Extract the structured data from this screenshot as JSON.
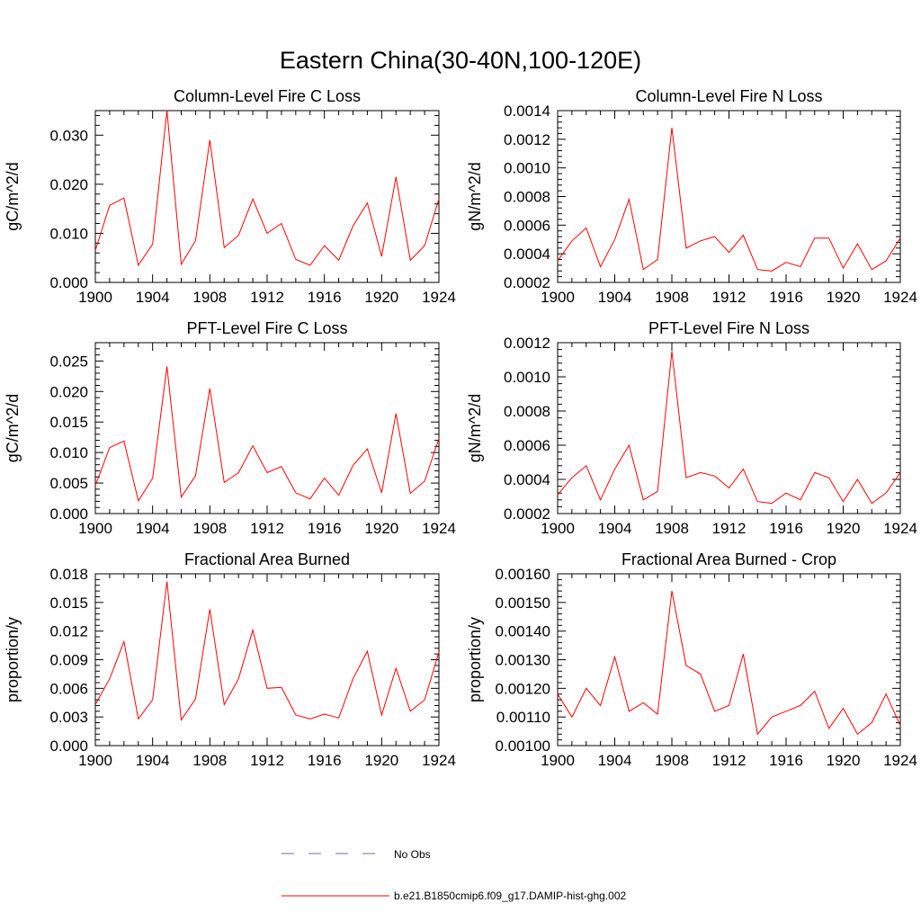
{
  "figure": {
    "title": "Eastern China(30-40N,100-120E)"
  },
  "legend": {
    "items": [
      {
        "label": "No Obs",
        "style": "dashed",
        "color": "#6b6bb8"
      },
      {
        "label": "b.e21.B1850cmip6.f09_g17.DAMIP-hist-ghg.002",
        "style": "solid",
        "color": "#ff0000"
      }
    ]
  },
  "colors": {
    "series": "#ff0000",
    "axis": "#000000"
  },
  "chart_data": [
    {
      "type": "line",
      "title": "Column-Level Fire C Loss",
      "ylabel": "gC/m^2/d",
      "xlim": [
        1900,
        1924
      ],
      "ylim": [
        0,
        0.035
      ],
      "xticks": [
        "1900",
        "1904",
        "1908",
        "1912",
        "1916",
        "1920",
        "1924"
      ],
      "yticks": [
        "0.000",
        "0.010",
        "0.020",
        "0.030"
      ],
      "x": [
        1900,
        1901,
        1902,
        1903,
        1904,
        1905,
        1906,
        1907,
        1908,
        1909,
        1910,
        1911,
        1912,
        1913,
        1914,
        1915,
        1916,
        1917,
        1918,
        1919,
        1920,
        1921,
        1922,
        1923,
        1924
      ],
      "series": [
        {
          "name": "b.e21.B1850cmip6.f09_g17.DAMIP-hist-ghg.002",
          "values": [
            0.0065,
            0.0157,
            0.0172,
            0.0035,
            0.0078,
            0.035,
            0.0037,
            0.0085,
            0.029,
            0.0071,
            0.0096,
            0.017,
            0.01,
            0.012,
            0.0047,
            0.0035,
            0.0075,
            0.0045,
            0.0115,
            0.0162,
            0.0053,
            0.0215,
            0.0045,
            0.0075,
            0.017
          ]
        }
      ]
    },
    {
      "type": "line",
      "title": "Column-Level Fire N Loss",
      "ylabel": "gN/m^2/d",
      "xlim": [
        1900,
        1924
      ],
      "ylim": [
        0.0002,
        0.0014
      ],
      "xticks": [
        "1900",
        "1904",
        "1908",
        "1912",
        "1916",
        "1920",
        "1924"
      ],
      "yticks": [
        "0.0002",
        "0.0004",
        "0.0006",
        "0.0008",
        "0.0010",
        "0.0012",
        "0.0014"
      ],
      "x": [
        1900,
        1901,
        1902,
        1903,
        1904,
        1905,
        1906,
        1907,
        1908,
        1909,
        1910,
        1911,
        1912,
        1913,
        1914,
        1915,
        1916,
        1917,
        1918,
        1919,
        1920,
        1921,
        1922,
        1923,
        1924
      ],
      "series": [
        {
          "name": "b.e21.B1850cmip6.f09_g17.DAMIP-hist-ghg.002",
          "values": [
            0.00035,
            0.00049,
            0.00058,
            0.00031,
            0.0005,
            0.00078,
            0.00029,
            0.00036,
            0.00128,
            0.00044,
            0.00049,
            0.00052,
            0.00041,
            0.00053,
            0.00029,
            0.00028,
            0.00034,
            0.00031,
            0.00051,
            0.00051,
            0.0003,
            0.00047,
            0.00029,
            0.00035,
            0.00051
          ]
        }
      ]
    },
    {
      "type": "line",
      "title": "PFT-Level Fire C Loss",
      "ylabel": "gC/m^2/d",
      "xlim": [
        1900,
        1924
      ],
      "ylim": [
        0,
        0.028
      ],
      "xticks": [
        "1900",
        "1904",
        "1908",
        "1912",
        "1916",
        "1920",
        "1924"
      ],
      "yticks": [
        "0.000",
        "0.005",
        "0.010",
        "0.015",
        "0.020",
        "0.025"
      ],
      "x": [
        1900,
        1901,
        1902,
        1903,
        1904,
        1905,
        1906,
        1907,
        1908,
        1909,
        1910,
        1911,
        1912,
        1913,
        1914,
        1915,
        1916,
        1917,
        1918,
        1919,
        1920,
        1921,
        1922,
        1923,
        1924
      ],
      "series": [
        {
          "name": "b.e21.B1850cmip6.f09_g17.DAMIP-hist-ghg.002",
          "values": [
            0.0046,
            0.0108,
            0.0119,
            0.0021,
            0.0058,
            0.0241,
            0.0027,
            0.0062,
            0.0205,
            0.0051,
            0.0067,
            0.0111,
            0.0067,
            0.0077,
            0.0034,
            0.0024,
            0.0058,
            0.003,
            0.0079,
            0.0106,
            0.0034,
            0.0164,
            0.0033,
            0.0053,
            0.0123
          ]
        }
      ]
    },
    {
      "type": "line",
      "title": "PFT-Level Fire N Loss",
      "ylabel": "gN/m^2/d",
      "xlim": [
        1900,
        1924
      ],
      "ylim": [
        0.0002,
        0.0012
      ],
      "xticks": [
        "1900",
        "1904",
        "1908",
        "1912",
        "1916",
        "1920",
        "1924"
      ],
      "yticks": [
        "0.0002",
        "0.0004",
        "0.0006",
        "0.0008",
        "0.0010",
        "0.0012"
      ],
      "x": [
        1900,
        1901,
        1902,
        1903,
        1904,
        1905,
        1906,
        1907,
        1908,
        1909,
        1910,
        1911,
        1912,
        1913,
        1914,
        1915,
        1916,
        1917,
        1918,
        1919,
        1920,
        1921,
        1922,
        1923,
        1924
      ],
      "series": [
        {
          "name": "b.e21.B1850cmip6.f09_g17.DAMIP-hist-ghg.002",
          "values": [
            0.00031,
            0.00041,
            0.00048,
            0.00028,
            0.00046,
            0.0006,
            0.00028,
            0.00033,
            0.00115,
            0.00041,
            0.00044,
            0.00042,
            0.00035,
            0.00046,
            0.00027,
            0.00026,
            0.00032,
            0.00028,
            0.00044,
            0.00041,
            0.00027,
            0.0004,
            0.00026,
            0.00032,
            0.00044
          ]
        }
      ]
    },
    {
      "type": "line",
      "title": "Fractional Area Burned",
      "ylabel": "proportion/y",
      "xlim": [
        1900,
        1924
      ],
      "ylim": [
        0,
        0.018
      ],
      "xticks": [
        "1900",
        "1904",
        "1908",
        "1912",
        "1916",
        "1920",
        "1924"
      ],
      "yticks": [
        "0.000",
        "0.003",
        "0.006",
        "0.009",
        "0.012",
        "0.015",
        "0.018"
      ],
      "x": [
        1900,
        1901,
        1902,
        1903,
        1904,
        1905,
        1906,
        1907,
        1908,
        1909,
        1910,
        1911,
        1912,
        1913,
        1914,
        1915,
        1916,
        1917,
        1918,
        1919,
        1920,
        1921,
        1922,
        1923,
        1924
      ],
      "series": [
        {
          "name": "b.e21.B1850cmip6.f09_g17.DAMIP-hist-ghg.002",
          "values": [
            0.0043,
            0.007,
            0.0109,
            0.0028,
            0.0048,
            0.0172,
            0.0027,
            0.0049,
            0.0143,
            0.0043,
            0.007,
            0.0121,
            0.006,
            0.0061,
            0.0032,
            0.0028,
            0.0033,
            0.0029,
            0.007,
            0.0099,
            0.0032,
            0.0081,
            0.0036,
            0.0048,
            0.0098
          ]
        }
      ]
    },
    {
      "type": "line",
      "title": "Fractional Area Burned - Crop",
      "ylabel": "proportion/y",
      "xlim": [
        1900,
        1924
      ],
      "ylim": [
        0.001,
        0.0016
      ],
      "xticks": [
        "1900",
        "1904",
        "1908",
        "1912",
        "1916",
        "1920",
        "1924"
      ],
      "yticks": [
        "0.00100",
        "0.00110",
        "0.00120",
        "0.00130",
        "0.00140",
        "0.00150",
        "0.00160"
      ],
      "x": [
        1900,
        1901,
        1902,
        1903,
        1904,
        1905,
        1906,
        1907,
        1908,
        1909,
        1910,
        1911,
        1912,
        1913,
        1914,
        1915,
        1916,
        1917,
        1918,
        1919,
        1920,
        1921,
        1922,
        1923,
        1924
      ],
      "series": [
        {
          "name": "b.e21.B1850cmip6.f09_g17.DAMIP-hist-ghg.002",
          "values": [
            0.00118,
            0.0011,
            0.0012,
            0.00114,
            0.00131,
            0.00112,
            0.00115,
            0.00111,
            0.00154,
            0.00128,
            0.00125,
            0.00112,
            0.00114,
            0.00132,
            0.00104,
            0.0011,
            0.00112,
            0.00114,
            0.00119,
            0.00106,
            0.00113,
            0.00104,
            0.00108,
            0.00118,
            0.00107
          ]
        }
      ]
    }
  ]
}
